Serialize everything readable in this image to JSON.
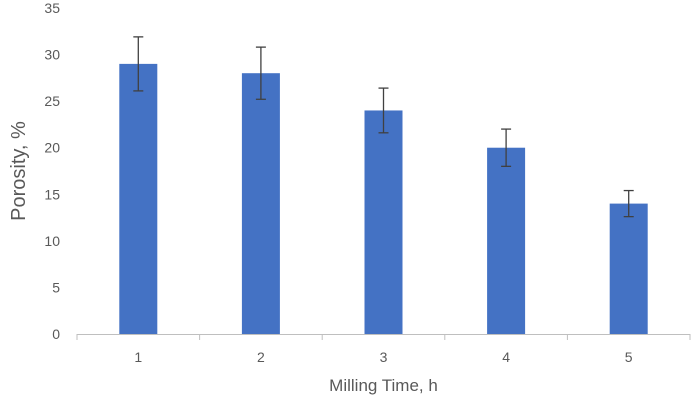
{
  "chart_data": {
    "type": "bar",
    "title": "",
    "xlabel": "Milling Time, h",
    "ylabel": "Porosity, %",
    "categories": [
      "1",
      "2",
      "3",
      "4",
      "5"
    ],
    "series": [
      {
        "values": [
          29,
          28,
          24,
          20,
          14
        ],
        "error": [
          2.9,
          2.8,
          2.4,
          2.0,
          1.4
        ]
      }
    ],
    "ylim": [
      0,
      35
    ],
    "yticks": [
      "0",
      "5",
      "10",
      "15",
      "20",
      "25",
      "30",
      "35"
    ],
    "grid": false,
    "legend": "none",
    "colors": {
      "bar": "#4472C4",
      "axis": "#BFBFBF",
      "error_bar": "#404040",
      "text": "#595959"
    }
  }
}
